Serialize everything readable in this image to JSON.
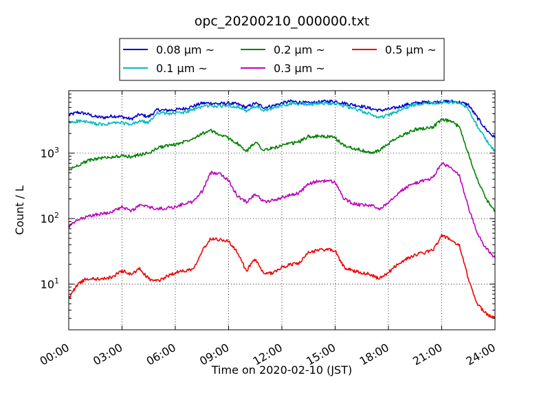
{
  "chart_data": {
    "type": "line",
    "title": "opc_20200210_000000.txt",
    "xlabel": "Time on 2020-02-10 (JST)",
    "ylabel": "Count / L",
    "x_ticks": [
      "00:00",
      "03:00",
      "06:00",
      "09:00",
      "12:00",
      "15:00",
      "18:00",
      "21:00",
      "24:00"
    ],
    "xlim": [
      "00:00",
      "24:00"
    ],
    "yscale": "log",
    "ylim": [
      2,
      9000
    ],
    "y_ticks": [
      {
        "value": 10,
        "base": "10",
        "exp": "1"
      },
      {
        "value": 100,
        "base": "10",
        "exp": "2"
      },
      {
        "value": 1000,
        "base": "10",
        "exp": "3"
      }
    ],
    "grid": true,
    "legend_position": "top-center",
    "x": [
      "00:00",
      "00:30",
      "01:00",
      "01:30",
      "02:00",
      "02:30",
      "03:00",
      "03:30",
      "04:00",
      "04:30",
      "05:00",
      "05:30",
      "06:00",
      "06:30",
      "07:00",
      "07:30",
      "08:00",
      "08:30",
      "09:00",
      "09:30",
      "10:00",
      "10:30",
      "11:00",
      "11:30",
      "12:00",
      "12:30",
      "13:00",
      "13:30",
      "14:00",
      "14:30",
      "15:00",
      "15:30",
      "16:00",
      "16:30",
      "17:00",
      "17:30",
      "18:00",
      "18:30",
      "19:00",
      "19:30",
      "20:00",
      "20:30",
      "21:00",
      "21:30",
      "22:00",
      "22:30",
      "23:00",
      "23:30",
      "24:00"
    ],
    "series": [
      {
        "name": "0.08 μm ~",
        "color": "#0000cc",
        "values": [
          3800,
          4200,
          4000,
          3600,
          3500,
          3700,
          3600,
          3300,
          3900,
          3600,
          4600,
          4500,
          4600,
          4800,
          5200,
          5800,
          5800,
          5700,
          5800,
          5600,
          5000,
          5800,
          5000,
          5300,
          5800,
          6200,
          6000,
          5800,
          6000,
          6200,
          6200,
          5800,
          5500,
          5200,
          4800,
          4500,
          4700,
          5000,
          5500,
          5800,
          6000,
          6000,
          6100,
          6200,
          6000,
          5500,
          3500,
          2300,
          1700
        ]
      },
      {
        "name": "0.1 μm ~",
        "color": "#00bbbb",
        "values": [
          2900,
          3100,
          3000,
          2800,
          2700,
          2900,
          2900,
          2700,
          3100,
          2900,
          4200,
          4000,
          4100,
          4200,
          4600,
          5200,
          5300,
          5200,
          5400,
          5100,
          4300,
          5200,
          4500,
          4800,
          5300,
          5700,
          5700,
          5600,
          5700,
          5800,
          5800,
          5300,
          4800,
          4400,
          3900,
          3500,
          3800,
          4300,
          5000,
          5500,
          5900,
          5900,
          6000,
          6000,
          5800,
          4800,
          2600,
          1600,
          1050
        ]
      },
      {
        "name": "0.2 μm ~",
        "color": "#008000",
        "values": [
          550,
          650,
          750,
          820,
          850,
          880,
          900,
          880,
          950,
          1000,
          1200,
          1300,
          1350,
          1500,
          1700,
          2000,
          2200,
          1900,
          1700,
          1400,
          1050,
          1500,
          1100,
          1200,
          1300,
          1400,
          1500,
          1800,
          1800,
          1800,
          1700,
          1300,
          1200,
          1100,
          1000,
          1100,
          1400,
          1700,
          2000,
          2300,
          2400,
          2500,
          3200,
          3100,
          2500,
          1000,
          400,
          200,
          130
        ]
      },
      {
        "name": "0.3 μm ~",
        "color": "#bb00bb",
        "values": [
          75,
          95,
          105,
          115,
          120,
          130,
          150,
          130,
          160,
          150,
          140,
          145,
          150,
          170,
          180,
          260,
          500,
          500,
          380,
          220,
          180,
          240,
          180,
          190,
          210,
          230,
          250,
          340,
          370,
          380,
          360,
          200,
          170,
          160,
          160,
          140,
          180,
          240,
          300,
          350,
          380,
          420,
          700,
          600,
          450,
          150,
          60,
          35,
          25
        ]
      },
      {
        "name": "0.5 μm ~",
        "color": "#ee0000",
        "values": [
          6,
          10,
          12,
          12,
          12,
          13,
          16,
          14,
          17,
          12,
          11,
          13,
          15,
          16,
          17,
          32,
          50,
          48,
          45,
          30,
          16,
          24,
          14,
          15,
          18,
          20,
          21,
          30,
          33,
          34,
          32,
          18,
          16,
          15,
          14,
          12,
          15,
          20,
          24,
          28,
          30,
          33,
          55,
          48,
          38,
          12,
          5,
          3.5,
          3
        ]
      }
    ]
  }
}
